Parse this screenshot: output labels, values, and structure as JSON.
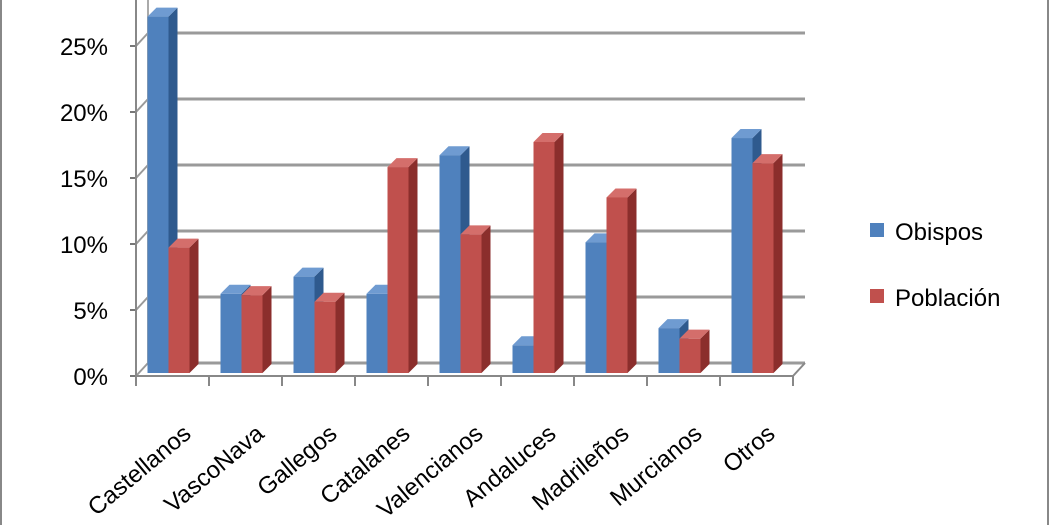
{
  "chart_data": {
    "type": "bar",
    "style": "3d-clustered-column",
    "categories": [
      "Castellanos",
      "VascoNava",
      "Gallegos",
      "Catalanes",
      "Valencianos",
      "Andaluces",
      "Madrileños",
      "Murcianos",
      "Otros"
    ],
    "series": [
      {
        "name": "Obispos",
        "color": "#4F81BD",
        "values": [
          27.0,
          6.0,
          7.3,
          6.0,
          16.5,
          2.1,
          9.9,
          3.4,
          17.8
        ]
      },
      {
        "name": "Población",
        "color": "#C0504D",
        "values": [
          9.5,
          5.9,
          5.4,
          15.6,
          10.5,
          17.5,
          13.3,
          2.6,
          15.9
        ]
      }
    ],
    "yticks": [
      "0%",
      "5%",
      "10%",
      "15%",
      "20%",
      "25%"
    ],
    "ylim": [
      0,
      27
    ],
    "grid": true,
    "legend": "right"
  }
}
